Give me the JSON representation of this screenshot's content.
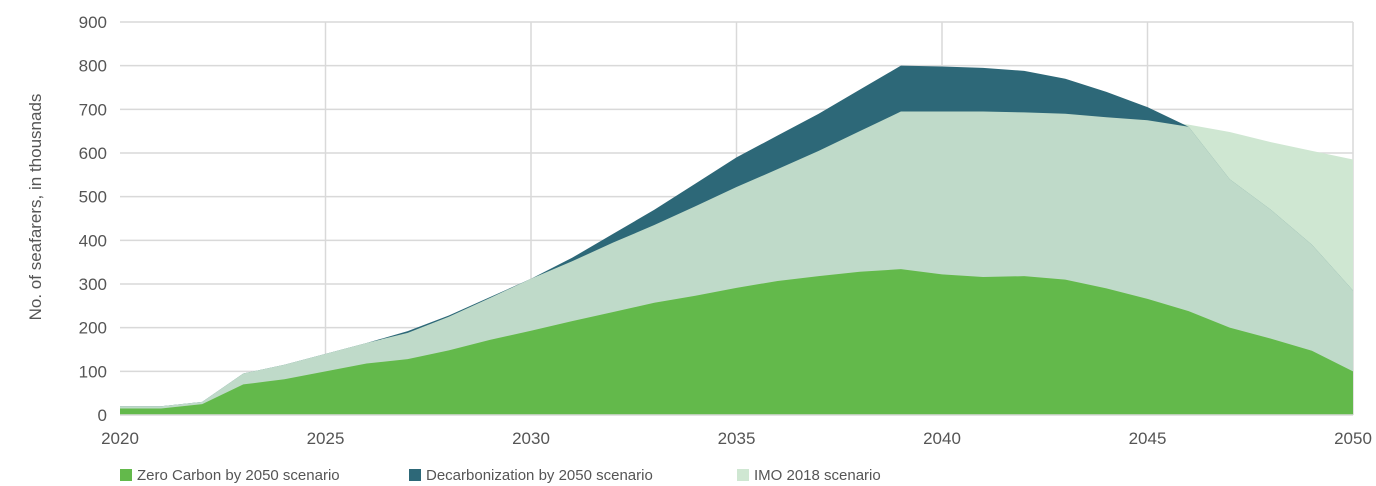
{
  "chart_data": {
    "type": "area",
    "title": "",
    "xlabel": "",
    "ylabel": "No. of seafarers, in thousnads",
    "xlim": [
      2020,
      2050
    ],
    "ylim": [
      0,
      900
    ],
    "x_ticks": [
      2020,
      2025,
      2030,
      2035,
      2040,
      2045,
      2050
    ],
    "y_ticks": [
      0,
      100,
      200,
      300,
      400,
      500,
      600,
      700,
      800,
      900
    ],
    "grid": true,
    "legend_position": "bottom-left",
    "x": [
      2020,
      2021,
      2022,
      2023,
      2024,
      2025,
      2026,
      2027,
      2028,
      2029,
      2030,
      2031,
      2032,
      2033,
      2034,
      2035,
      2036,
      2037,
      2038,
      2039,
      2040,
      2041,
      2042,
      2043,
      2044,
      2045,
      2046,
      2047,
      2048,
      2049,
      2050
    ],
    "series": [
      {
        "name": "IMO 2018 scenario",
        "color": "#cfe7d2",
        "values": [
          20,
          20,
          30,
          95,
          115,
          140,
          165,
          188,
          225,
          268,
          312,
          352,
          395,
          435,
          478,
          522,
          563,
          605,
          650,
          695,
          695,
          695,
          693,
          690,
          682,
          675,
          665,
          648,
          625,
          605,
          585
        ]
      },
      {
        "name": "Decarbonization by 2050 scenario",
        "color": "#2d6878",
        "values": [
          20,
          20,
          30,
          95,
          115,
          140,
          165,
          192,
          228,
          270,
          312,
          360,
          415,
          470,
          530,
          590,
          640,
          690,
          745,
          800,
          798,
          795,
          788,
          770,
          740,
          705,
          660,
          540,
          470,
          390,
          285
        ]
      },
      {
        "name": "Zero Carbon by 2050 scenario",
        "color": "#63b94b",
        "values": [
          15,
          15,
          25,
          70,
          82,
          100,
          118,
          128,
          148,
          172,
          193,
          215,
          236,
          257,
          273,
          291,
          307,
          318,
          328,
          334,
          322,
          316,
          318,
          310,
          290,
          266,
          238,
          200,
          175,
          147,
          100
        ]
      }
    ],
    "legend": [
      {
        "label": "Zero Carbon by 2050 scenario",
        "color": "#63b94b"
      },
      {
        "label": "Decarbonization by 2050 scenario",
        "color": "#2d6878"
      },
      {
        "label": "IMO 2018 scenario",
        "color": "#cfe7d2"
      }
    ]
  }
}
